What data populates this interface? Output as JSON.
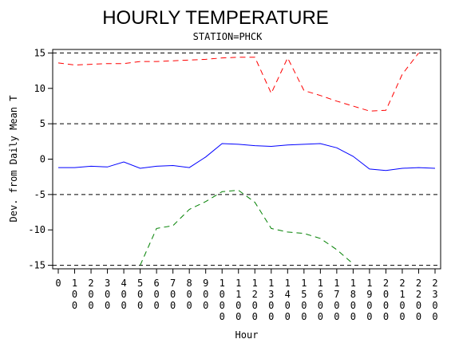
{
  "chart_data": {
    "type": "line",
    "title": "HOURLY TEMPERATURE",
    "subtitle": "STATION=PHCK",
    "xlabel": "Hour",
    "ylabel": "Dev. from Daily Mean T",
    "xlim": [
      0,
      23
    ],
    "ylim": [
      -15.5,
      15.5
    ],
    "x": [
      0,
      1,
      2,
      3,
      4,
      5,
      6,
      7,
      8,
      9,
      10,
      11,
      12,
      13,
      14,
      15,
      16,
      17,
      18,
      19,
      20,
      21,
      22,
      23
    ],
    "x_tick_labels": [
      "0",
      "100",
      "200",
      "300",
      "400",
      "500",
      "600",
      "700",
      "800",
      "900",
      "1000",
      "1100",
      "1200",
      "1300",
      "1400",
      "1500",
      "1600",
      "1700",
      "1800",
      "1900",
      "2000",
      "2100",
      "2200",
      "2300"
    ],
    "y_ticks": [
      15,
      10,
      5,
      0,
      -5,
      -10,
      -15
    ],
    "y_tick_labels": [
      "15",
      "10",
      "5",
      "0",
      "-5",
      "-10",
      "-15"
    ],
    "reference_lines": [
      15,
      5,
      -5,
      -15
    ],
    "grid": false,
    "series": [
      {
        "style": "dashed",
        "color": "#ff0000",
        "x": [
          0,
          1,
          2,
          3,
          4,
          5,
          6,
          7,
          8,
          9,
          10,
          11,
          12,
          13,
          14,
          15,
          16,
          17,
          18,
          19,
          20,
          21,
          22
        ],
        "values": [
          13.6,
          13.3,
          13.4,
          13.5,
          13.5,
          13.8,
          13.8,
          13.9,
          14.0,
          14.1,
          14.3,
          14.4,
          14.4,
          9.3,
          14.3,
          9.7,
          9.0,
          8.2,
          7.5,
          6.8,
          6.9,
          12.0,
          15.0
        ]
      },
      {
        "style": "solid",
        "color": "#0000ff",
        "x": [
          0,
          1,
          2,
          3,
          4,
          5,
          6,
          7,
          8,
          9,
          10,
          11,
          12,
          13,
          14,
          15,
          16,
          17,
          18,
          19,
          20,
          21,
          22,
          23
        ],
        "values": [
          -1.2,
          -1.2,
          -1.0,
          -1.1,
          -0.4,
          -1.3,
          -1.0,
          -0.9,
          -1.2,
          0.3,
          2.2,
          2.1,
          1.9,
          1.8,
          2.0,
          2.1,
          2.2,
          1.6,
          0.4,
          -1.4,
          -1.6,
          -1.3,
          -1.2,
          -1.3
        ]
      },
      {
        "style": "dashed",
        "color": "#008000",
        "x": [
          5,
          6,
          7,
          8,
          9,
          10,
          11,
          12,
          13,
          14,
          15,
          16,
          17,
          18
        ],
        "values": [
          -15.0,
          -9.8,
          -9.4,
          -7.1,
          -6.0,
          -4.6,
          -4.4,
          -6.1,
          -9.8,
          -10.3,
          -10.5,
          -11.2,
          -12.8,
          -14.8
        ]
      }
    ]
  }
}
